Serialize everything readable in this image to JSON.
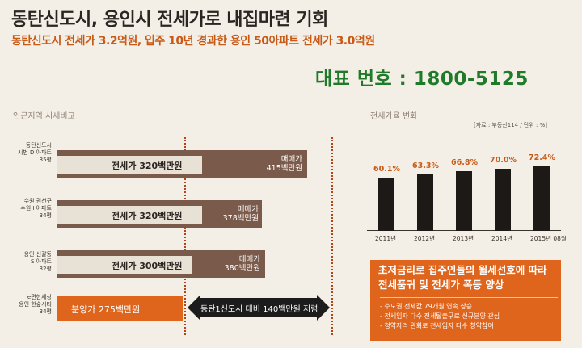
{
  "header": {
    "title": "동탄신도시, 용인시 전세가로 내집마련 기회",
    "subtitle": "동탄신도시 전세가 3.2억원, 입주 10년 경과한 용인 50아파트 전세가 3.0억원",
    "phone": "대표 번호 : 1800-5125"
  },
  "comparison": {
    "label": "인근지역 시세비교",
    "rows": [
      {
        "name_lines": [
          "동탄신도시",
          "시범 D 아파트",
          "35평"
        ],
        "jeonse": "전세가 320백만원",
        "sale_lines": [
          "매매가",
          "415백만원"
        ],
        "jeonse_ratio": 0.771,
        "sale_ratio": 1.0
      },
      {
        "name_lines": [
          "수원 권선구",
          "수원 I 아파트",
          "34평"
        ],
        "jeonse": "전세가 320백만원",
        "sale_lines": [
          "매매가",
          "378백만원"
        ],
        "jeonse_ratio": 0.771,
        "sale_ratio": 0.911
      },
      {
        "name_lines": [
          "용인 신갈동",
          "S 아파트",
          "32평"
        ],
        "jeonse": "전세가 300백만원",
        "sale_lines": [
          "매매가",
          "380백만원"
        ],
        "jeonse_ratio": 0.723,
        "sale_ratio": 0.916
      }
    ],
    "offer": {
      "name_lines": [
        "e편한세상",
        "용인 한숲시티",
        "34평"
      ],
      "price": "분양가 275백만원",
      "compare": "동탄1신도시 대비 140백만원 저렴"
    }
  },
  "chart_panel": {
    "label": "전세가율 변화",
    "source": "[자료 : 부동산114 / 단위 : %]",
    "chart_data": {
      "type": "bar",
      "categories": [
        "2011년",
        "2012년",
        "2013년",
        "2014년",
        "2015년 08월"
      ],
      "values": [
        60.1,
        63.3,
        66.8,
        70.0,
        72.4
      ],
      "value_labels": [
        "60.1%",
        "63.3%",
        "66.8%",
        "70.0%",
        "72.4%"
      ],
      "ylim": [
        0,
        80
      ],
      "bar_color": "#1c1917",
      "label_color": "#c85a18"
    }
  },
  "callout": {
    "headline_lines": [
      "초저금리로 집주인들의 월세선호에 따라",
      "전세품귀 및 전세가 폭등 양상"
    ],
    "bullets": [
      "- 수도권 전세값 79개월 연속 상승",
      "- 전세입자 다수 전세탈출구로 신규분양 관심",
      "- 청약자격 완화로 전세입자 다수 청약참여"
    ]
  },
  "colors": {
    "background": "#f4efe6",
    "accent_orange": "#e0651c",
    "phone_green": "#1f7a2a",
    "sale_bar": "#7a5a4a",
    "jeonse_bar": "#e8e1d6"
  }
}
